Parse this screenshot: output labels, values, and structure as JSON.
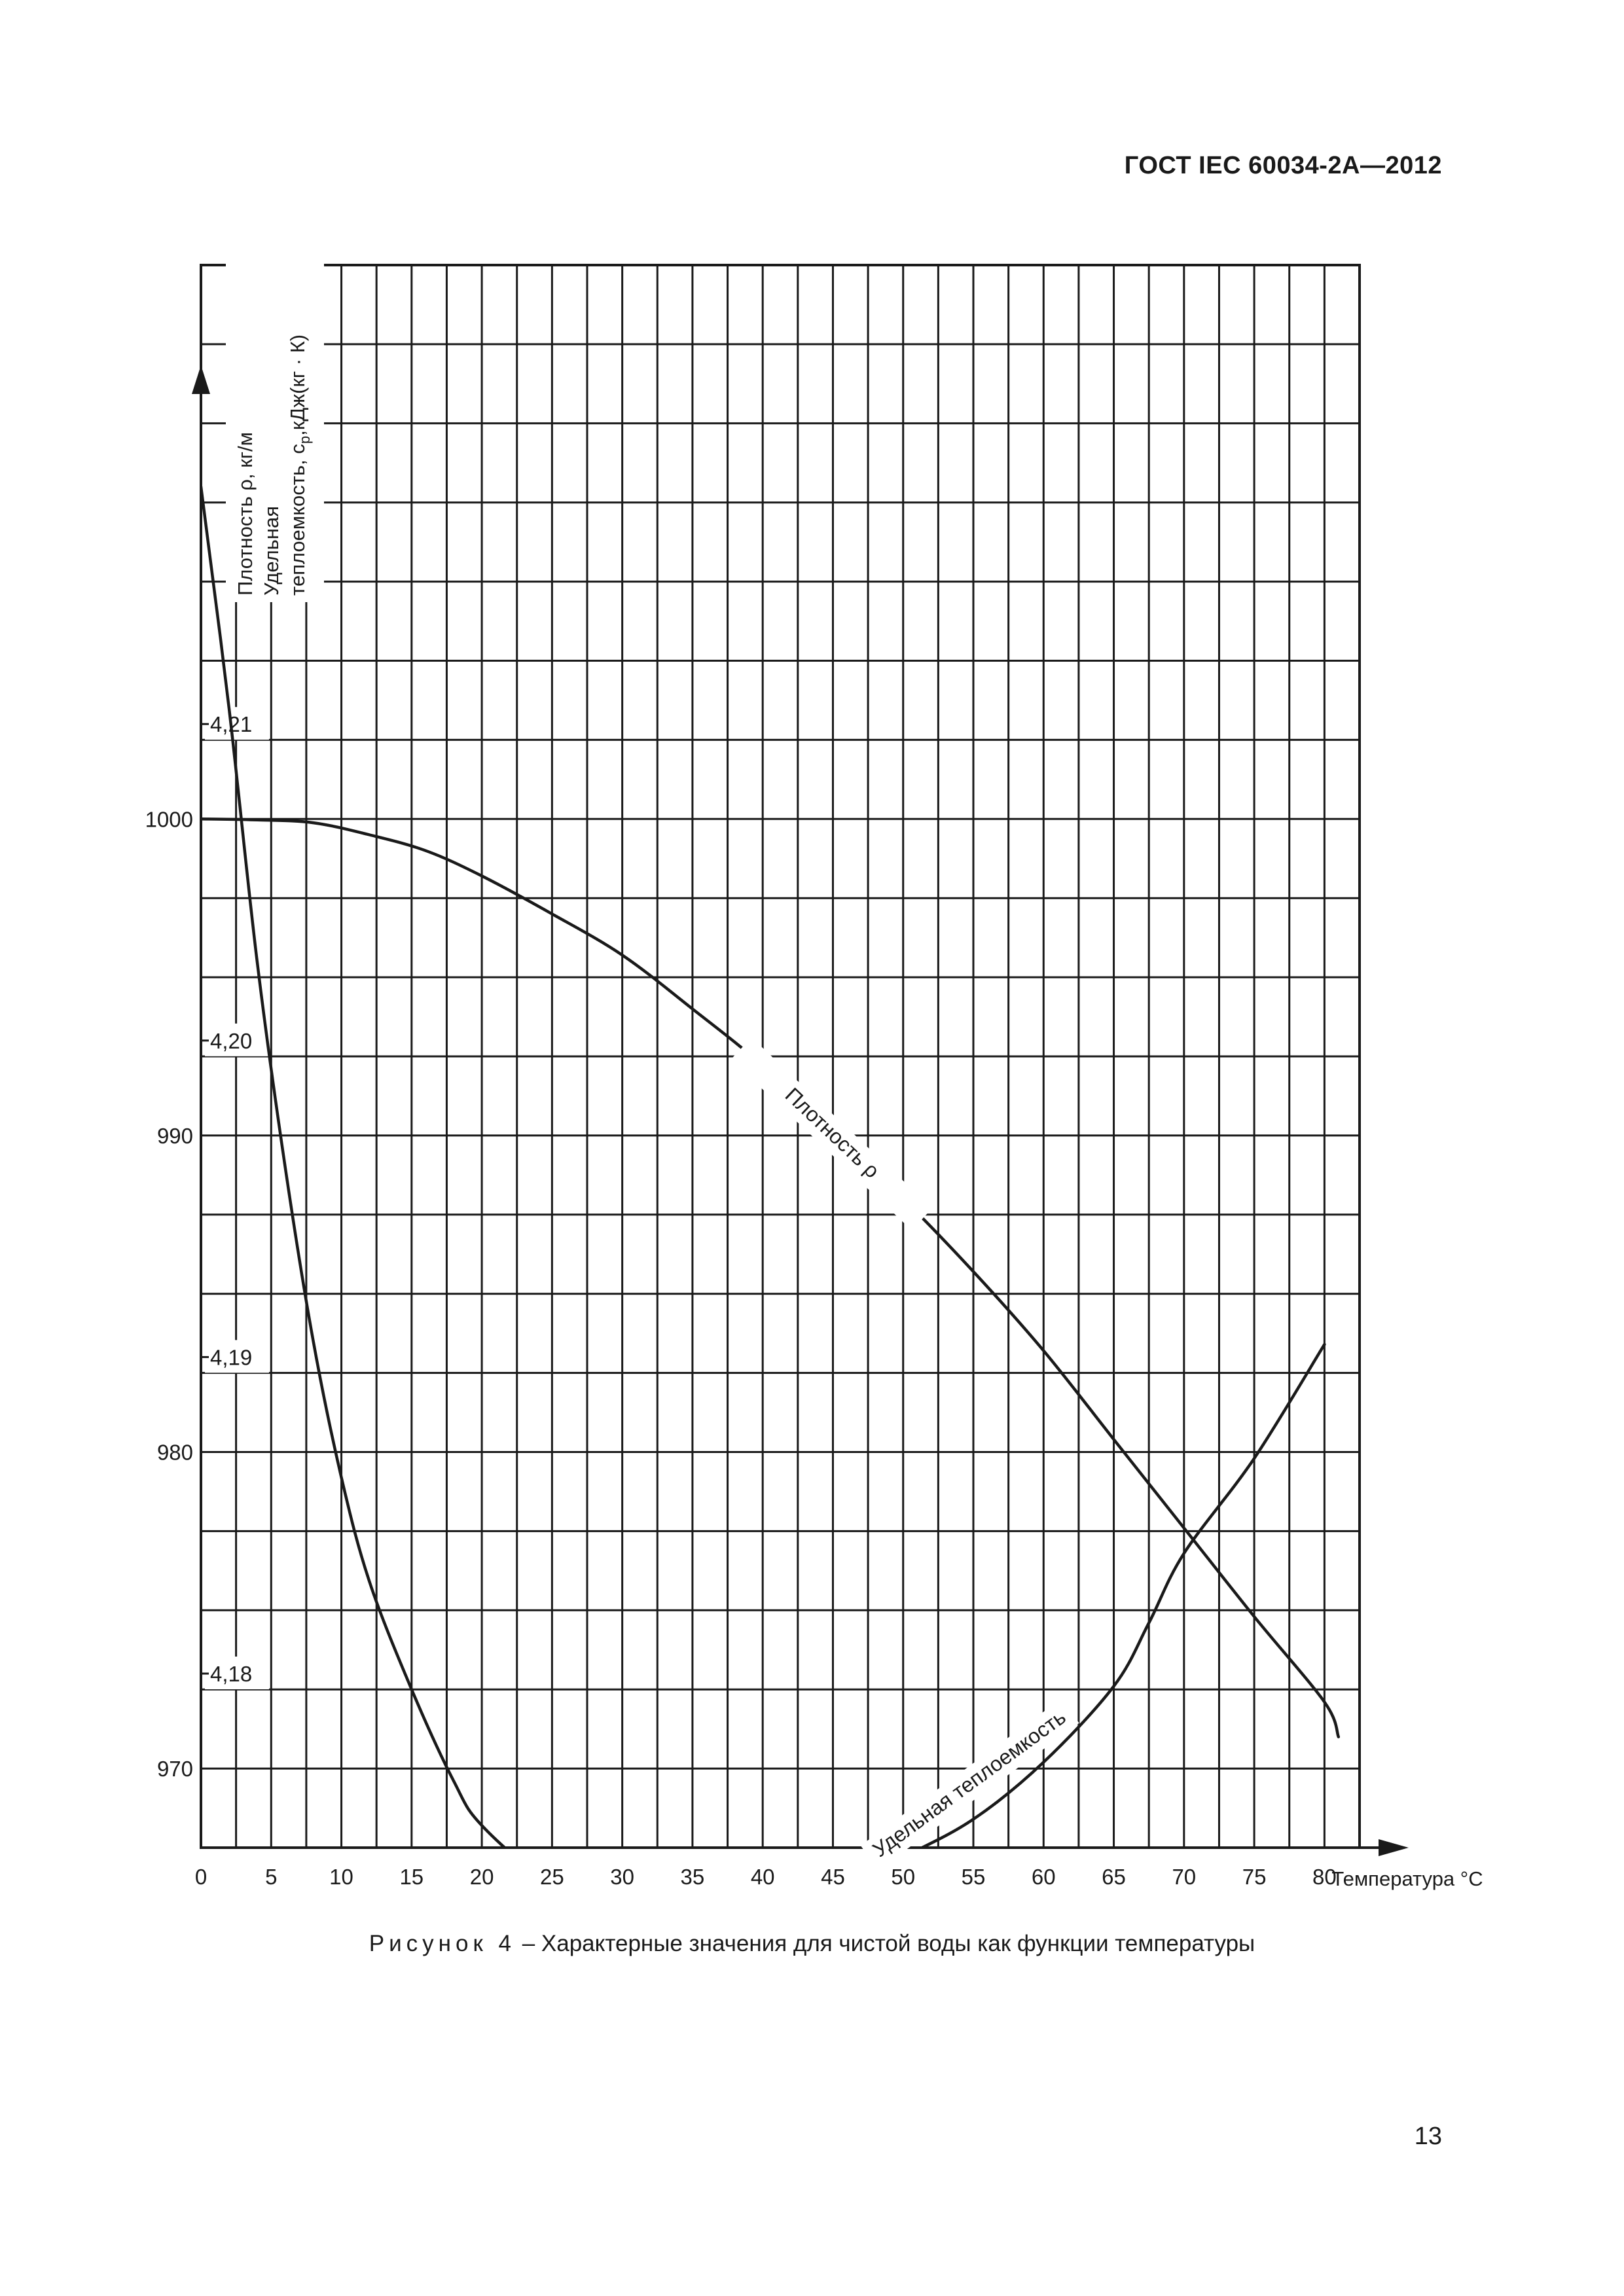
{
  "header": {
    "standard_code": "ГОСТ IEC 60034-2A—2012"
  },
  "caption": {
    "lead": "Рисунок 4",
    "text": " – Характерные значения для чистой воды как функции температуры"
  },
  "page_number": "13",
  "colors": {
    "ink": "#1a1a1a",
    "paper": "#ffffff"
  },
  "chart_data": {
    "type": "line",
    "title": "",
    "xlabel": "Температура °С",
    "ylabel_density": "Плотность ρ, кг/м",
    "ylabel_heat_capacity_line1": "Удельная",
    "ylabel_heat_capacity_line2": "теплоемкость, c",
    "ylabel_heat_capacity_sub": "p",
    "ylabel_heat_capacity_unit": ",кДж(кг · К)",
    "xlim": [
      0,
      82.5
    ],
    "x_ticks": [
      0,
      5,
      10,
      15,
      20,
      25,
      30,
      35,
      40,
      45,
      50,
      55,
      60,
      65,
      70,
      75,
      80
    ],
    "density_axis": {
      "ylim": [
        967.5,
        1017.5
      ],
      "ticks": [
        970,
        980,
        990,
        1000
      ],
      "tick_labels": [
        "970",
        "980",
        "990",
        "1000"
      ]
    },
    "heat_capacity_axis": {
      "ylim": [
        4.1745,
        4.2245
      ],
      "ticks": [
        4.18,
        4.19,
        4.2,
        4.21
      ],
      "tick_labels": [
        "4,18",
        "4,19",
        "4,20",
        "4,21"
      ]
    },
    "grid": true,
    "series": [
      {
        "name": "Плотность ρ",
        "axis": "density",
        "x": [
          0,
          4,
          8,
          12,
          16,
          20,
          25,
          30,
          35,
          40,
          45,
          50,
          55,
          60,
          65,
          70,
          75,
          80,
          81
        ],
        "values": [
          1000.0,
          999.97,
          999.88,
          999.5,
          999.0,
          998.2,
          997.0,
          995.7,
          994.0,
          992.2,
          990.0,
          988.0,
          985.7,
          983.2,
          980.4,
          977.6,
          974.8,
          972.1,
          971.0
        ]
      },
      {
        "name": "Удельная теплоемкость",
        "axis": "heat_capacity",
        "x": [
          0,
          2,
          4,
          6,
          8,
          10,
          12,
          15,
          18,
          20,
          25,
          30,
          35,
          40,
          45,
          50,
          55,
          60,
          65,
          67.5,
          70,
          75,
          80
        ],
        "values": [
          4.2175,
          4.2105,
          4.2025,
          4.196,
          4.1905,
          4.1862,
          4.1829,
          4.1795,
          4.1766,
          4.1752,
          4.1733,
          4.1722,
          4.1719,
          4.1722,
          4.1731,
          4.1742,
          4.1754,
          4.1772,
          4.1796,
          4.1816,
          4.1838,
          4.1868,
          4.1904
        ]
      }
    ]
  }
}
